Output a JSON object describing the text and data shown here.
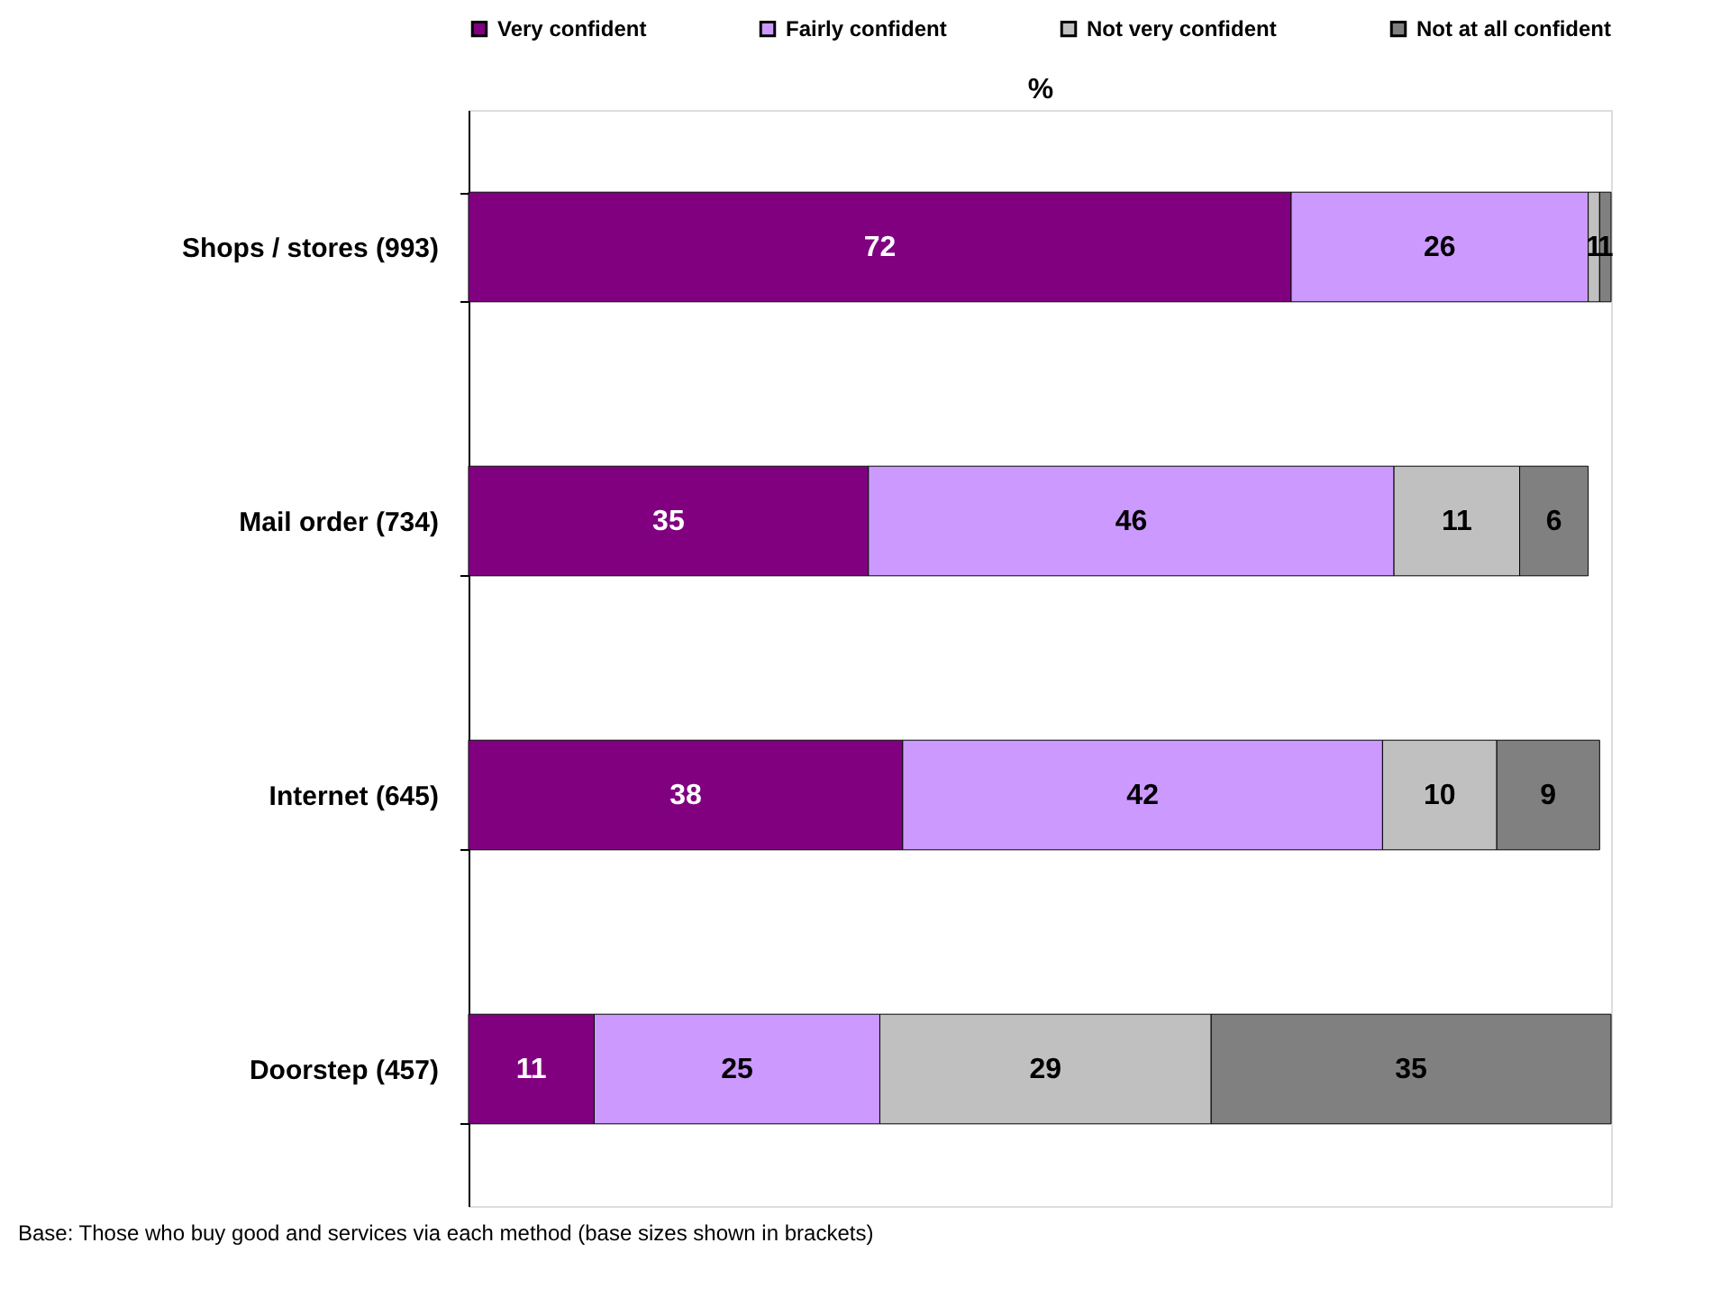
{
  "chart_data": {
    "type": "bar",
    "orientation": "horizontal",
    "stacked": true,
    "data_labels": true,
    "legend": "top",
    "xlabel": "%",
    "categories": [
      "Shops / stores (993)",
      "Mail order (734)",
      "Internet (645)",
      "Doorstep (457)"
    ],
    "series": [
      {
        "name": "Very confident",
        "color": "#800080",
        "values": [
          72,
          35,
          38,
          11
        ]
      },
      {
        "name": "Fairly confident",
        "color": "#cc99ff",
        "values": [
          26,
          46,
          42,
          25
        ]
      },
      {
        "name": "Not very confident",
        "color": "#c0c0c0",
        "values": [
          1,
          11,
          10,
          29
        ]
      },
      {
        "name": "Not at all confident",
        "color": "#808080",
        "values": [
          1,
          6,
          9,
          35
        ]
      }
    ],
    "annotations": [
      "Base: Those who buy good and services via each method (base sizes shown in brackets)"
    ]
  }
}
